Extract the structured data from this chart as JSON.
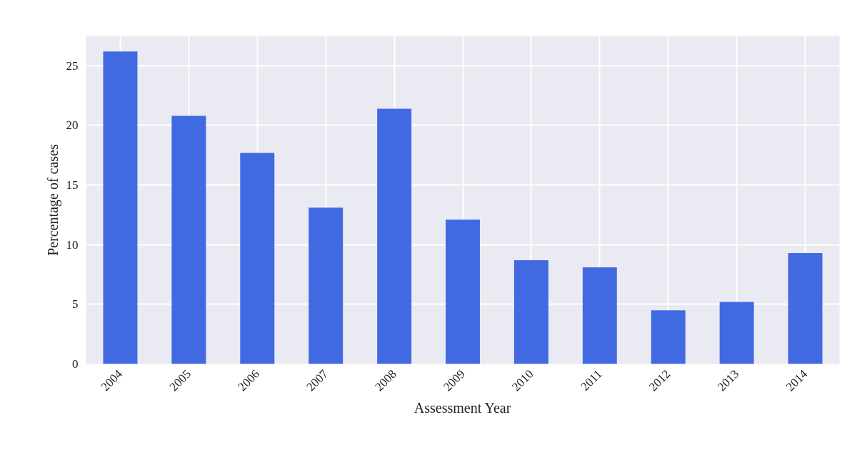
{
  "chart_data": {
    "type": "bar",
    "xlabel": "Assessment Year",
    "ylabel": "Percentage of cases",
    "categories": [
      "2004",
      "2005",
      "2006",
      "2007",
      "2008",
      "2009",
      "2010",
      "2011",
      "2012",
      "2013",
      "2014"
    ],
    "values": [
      26.2,
      20.8,
      17.7,
      13.1,
      21.4,
      12.1,
      8.7,
      8.1,
      4.5,
      5.2,
      9.3
    ],
    "color": "#4169e1",
    "ylim": [
      0,
      27.5
    ],
    "yticks": [
      0,
      5,
      10,
      15,
      20,
      25
    ],
    "grid": true
  }
}
